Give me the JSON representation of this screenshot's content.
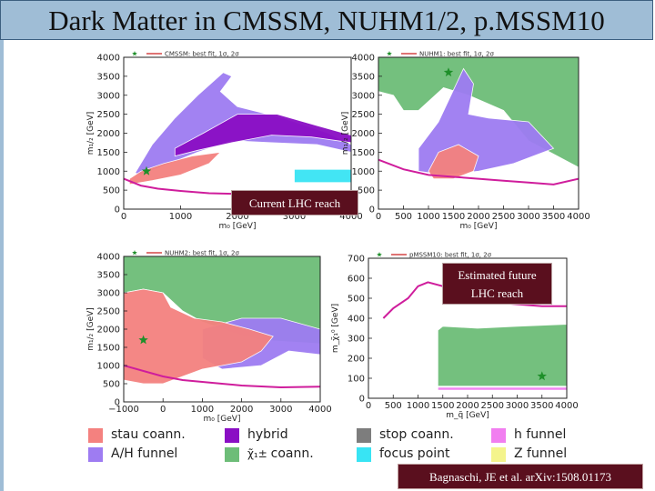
{
  "title": "Dark Matter in CMSSM, NUHM1/2, p.MSSM10",
  "callouts": {
    "lhc_reach": "Current LHC reach",
    "future_line1": "Estimated future",
    "future_line2": "LHC reach"
  },
  "citation": "Bagnaschi, JE et al. arXiv:1508.01173",
  "colors": {
    "stau": "#f4817f",
    "ah": "#9e7cf2",
    "hybrid": "#8a0ec4",
    "chargino": "#6dbd78",
    "stop": "#7d7d7d",
    "focus": "#38e4f4",
    "hfunnel": "#f17ef0",
    "zfunnel": "#f4f48c",
    "lhc_line": "#cf1d9c",
    "fit_line": "#cc2222"
  },
  "key": [
    {
      "label": "stau coann.",
      "color": "#f4817f"
    },
    {
      "label": "hybrid",
      "color": "#8a0ec4"
    },
    {
      "label": "stop coann.",
      "color": "#7d7d7d"
    },
    {
      "label": "h funnel",
      "color": "#f17ef0"
    },
    {
      "label": "A/H funnel",
      "color": "#9e7cf2"
    },
    {
      "label": "coann.",
      "color": "#6dbd78",
      "symbol": "χ̃₁±"
    },
    {
      "label": "focus point",
      "color": "#38e4f4"
    },
    {
      "label": "Z funnel",
      "color": "#f4f48c"
    }
  ],
  "chart_data": [
    {
      "type": "contour",
      "legend": "CMSSM: best fit, 1σ, 2σ",
      "xlabel": "m₀ [GeV]",
      "ylabel": "m₁/₂ [GeV]",
      "xlim": [
        0,
        4000
      ],
      "ylim": [
        0,
        4000
      ],
      "x_ticks": [
        0,
        1000,
        2000,
        3000,
        4000
      ],
      "y_ticks": [
        0,
        500,
        1000,
        1500,
        2000,
        2500,
        3000,
        3500,
        4000
      ],
      "best_fit": [
        400,
        1000
      ],
      "regions": [
        {
          "kind": "ah",
          "polygon": [
            [
              200,
              950
            ],
            [
              500,
              1700
            ],
            [
              900,
              2400
            ],
            [
              1300,
              3000
            ],
            [
              1750,
              3600
            ],
            [
              1900,
              3500
            ],
            [
              1700,
              3100
            ],
            [
              2000,
              2700
            ],
            [
              2800,
              2400
            ],
            [
              3600,
              2000
            ],
            [
              4000,
              1700
            ],
            [
              4000,
              1500
            ],
            [
              3400,
              1700
            ],
            [
              2600,
              1750
            ],
            [
              1900,
              1800
            ],
            [
              1300,
              1500
            ],
            [
              800,
              1200
            ],
            [
              300,
              900
            ]
          ]
        },
        {
          "kind": "hybrid",
          "polygon": [
            [
              900,
              1600
            ],
            [
              1400,
              2000
            ],
            [
              2000,
              2500
            ],
            [
              2700,
              2500
            ],
            [
              3400,
              2200
            ],
            [
              4000,
              1950
            ],
            [
              4000,
              1750
            ],
            [
              3300,
              1900
            ],
            [
              2600,
              1950
            ],
            [
              1900,
              1750
            ],
            [
              1300,
              1550
            ],
            [
              900,
              1400
            ]
          ]
        },
        {
          "kind": "stau",
          "polygon": [
            [
              100,
              800
            ],
            [
              300,
              1000
            ],
            [
              700,
              1200
            ],
            [
              1200,
              1400
            ],
            [
              1700,
              1500
            ],
            [
              1500,
              1200
            ],
            [
              1000,
              900
            ],
            [
              500,
              750
            ],
            [
              100,
              650
            ]
          ]
        },
        {
          "kind": "focus",
          "polygon": [
            [
              3000,
              1050
            ],
            [
              4000,
              1050
            ],
            [
              4000,
              700
            ],
            [
              3000,
              700
            ]
          ]
        }
      ],
      "lhc_curve": [
        [
          0,
          800
        ],
        [
          300,
          620
        ],
        [
          600,
          540
        ],
        [
          1000,
          480
        ],
        [
          1500,
          420
        ],
        [
          2000,
          400
        ],
        [
          2500,
          350
        ],
        [
          3000,
          330
        ],
        [
          3500,
          300
        ],
        [
          4000,
          280
        ]
      ]
    },
    {
      "type": "contour",
      "legend": "NUHM1: best fit, 1σ, 2σ",
      "xlabel": "m₀ [GeV]",
      "ylabel": "m₁/₂ [GeV]",
      "xlim": [
        0,
        4000
      ],
      "ylim": [
        0,
        4000
      ],
      "x_ticks": [
        0,
        500,
        1000,
        1500,
        2000,
        2500,
        3000,
        3500,
        4000
      ],
      "y_ticks": [
        0,
        500,
        1000,
        1500,
        2000,
        2500,
        3000,
        3500,
        4000
      ],
      "best_fit": [
        1400,
        3600
      ],
      "regions": [
        {
          "kind": "chargino",
          "polygon": [
            [
              0,
              4000
            ],
            [
              4000,
              4000
            ],
            [
              4000,
              1100
            ],
            [
              3000,
              1800
            ],
            [
              2500,
              2600
            ],
            [
              1800,
              3000
            ],
            [
              1300,
              3200
            ],
            [
              800,
              2600
            ],
            [
              500,
              2600
            ],
            [
              300,
              3000
            ],
            [
              0,
              3100
            ]
          ]
        },
        {
          "kind": "ah",
          "polygon": [
            [
              800,
              1600
            ],
            [
              1200,
              2300
            ],
            [
              1700,
              3700
            ],
            [
              1900,
              3300
            ],
            [
              1800,
              2500
            ],
            [
              2200,
              2400
            ],
            [
              3000,
              2300
            ],
            [
              3500,
              1600
            ],
            [
              2700,
              1200
            ],
            [
              2000,
              1000
            ],
            [
              1300,
              900
            ],
            [
              800,
              1000
            ]
          ]
        },
        {
          "kind": "stau",
          "polygon": [
            [
              1000,
              1000
            ],
            [
              1200,
              1500
            ],
            [
              1600,
              1700
            ],
            [
              2000,
              1400
            ],
            [
              1900,
              1000
            ],
            [
              1500,
              800
            ],
            [
              1100,
              800
            ]
          ]
        }
      ],
      "lhc_curve": [
        [
          0,
          1300
        ],
        [
          500,
          1050
        ],
        [
          1000,
          900
        ],
        [
          1500,
          850
        ],
        [
          2000,
          800
        ],
        [
          2500,
          750
        ],
        [
          3000,
          700
        ],
        [
          3500,
          650
        ],
        [
          4000,
          800
        ]
      ]
    },
    {
      "type": "contour",
      "legend": "NUHM2: best fit, 1σ, 2σ",
      "xlabel": "m₀ [GeV]",
      "ylabel": "m₁/₂ [GeV]",
      "xlim": [
        -1000,
        4000
      ],
      "ylim": [
        0,
        4000
      ],
      "x_ticks": [
        -1000,
        0,
        1000,
        2000,
        3000,
        4000
      ],
      "x_tick_labels": [
        "−1000",
        "0",
        "1000",
        "2000",
        "3000",
        "4000"
      ],
      "y_ticks": [
        0,
        500,
        1000,
        1500,
        2000,
        2500,
        3000,
        3500,
        4000
      ],
      "best_fit": [
        -500,
        1700
      ],
      "regions": [
        {
          "kind": "chargino",
          "polygon": [
            [
              -1000,
              4000
            ],
            [
              4000,
              4000
            ],
            [
              4000,
              1600
            ],
            [
              2500,
              1700
            ],
            [
              1800,
              1900
            ],
            [
              1000,
              2200
            ],
            [
              500,
              2500
            ],
            [
              0,
              3000
            ],
            [
              -500,
              3100
            ],
            [
              -1000,
              3000
            ]
          ]
        },
        {
          "kind": "ah",
          "polygon": [
            [
              1000,
              2000
            ],
            [
              2000,
              2300
            ],
            [
              3000,
              2300
            ],
            [
              4000,
              2000
            ],
            [
              4000,
              1300
            ],
            [
              3200,
              1400
            ],
            [
              2500,
              1000
            ],
            [
              1500,
              900
            ],
            [
              1000,
              1200
            ]
          ]
        },
        {
          "kind": "stau",
          "polygon": [
            [
              -1000,
              3000
            ],
            [
              -500,
              3100
            ],
            [
              0,
              3000
            ],
            [
              200,
              2600
            ],
            [
              800,
              2300
            ],
            [
              1500,
              2200
            ],
            [
              2200,
              2000
            ],
            [
              2800,
              1800
            ],
            [
              2500,
              1400
            ],
            [
              2000,
              1100
            ],
            [
              1500,
              1000
            ],
            [
              1000,
              900
            ],
            [
              500,
              700
            ],
            [
              0,
              500
            ],
            [
              -500,
              500
            ],
            [
              -1000,
              600
            ]
          ]
        }
      ],
      "lhc_curve": [
        [
          -1000,
          1000
        ],
        [
          0,
          700
        ],
        [
          500,
          600
        ],
        [
          1000,
          550
        ],
        [
          1500,
          500
        ],
        [
          2000,
          450
        ],
        [
          3000,
          400
        ],
        [
          4000,
          420
        ]
      ]
    },
    {
      "type": "contour",
      "legend": "pMSSM10: best fit, 1σ, 2σ",
      "xlabel": "m_q̃ [GeV]",
      "ylabel": "m_χ̃₁⁰ [GeV]",
      "xlim": [
        0,
        4000
      ],
      "ylim": [
        0,
        700
      ],
      "x_ticks": [
        0,
        500,
        1000,
        1500,
        2000,
        2500,
        3000,
        3500,
        4000
      ],
      "y_ticks": [
        0,
        100,
        200,
        300,
        400,
        500,
        600,
        700
      ],
      "best_fit": [
        3500,
        110
      ],
      "regions": [
        {
          "kind": "chargino",
          "polygon": [
            [
              1400,
              90
            ],
            [
              1400,
              340
            ],
            [
              1500,
              360
            ],
            [
              2200,
              350
            ],
            [
              3000,
              360
            ],
            [
              4000,
              370
            ],
            [
              4000,
              60
            ],
            [
              1400,
              60
            ]
          ]
        },
        {
          "kind": "hfunnel",
          "polygon": [
            [
              1400,
              40
            ],
            [
              4000,
              40
            ],
            [
              4000,
              55
            ],
            [
              1400,
              55
            ]
          ]
        }
      ],
      "lhc_curve": [
        [
          300,
          400
        ],
        [
          500,
          450
        ],
        [
          800,
          500
        ],
        [
          1000,
          560
        ],
        [
          1200,
          580
        ],
        [
          1500,
          560
        ],
        [
          2000,
          500
        ],
        [
          2500,
          480
        ],
        [
          3000,
          470
        ],
        [
          3500,
          460
        ],
        [
          4000,
          460
        ]
      ]
    }
  ]
}
